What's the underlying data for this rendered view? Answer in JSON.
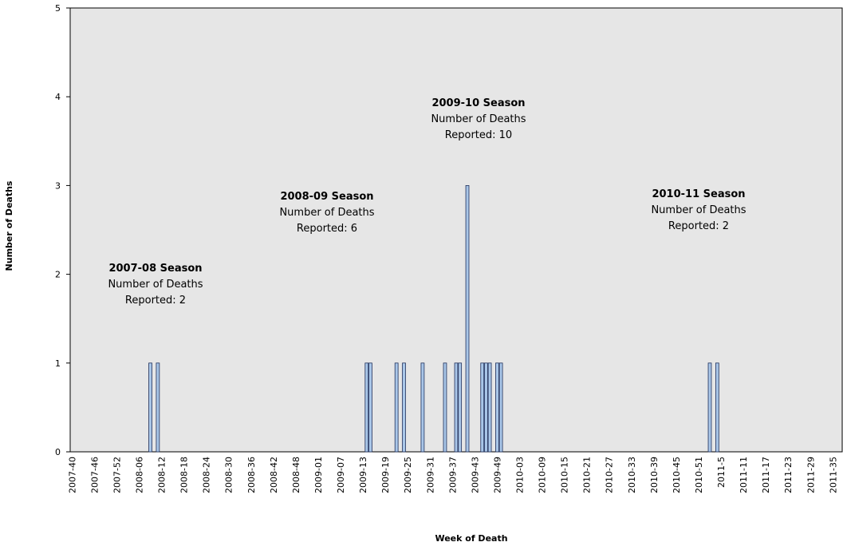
{
  "chart_data": {
    "type": "bar",
    "y_label": "Number of Deaths",
    "x_label": "Week of Death",
    "ylim": [
      0,
      5
    ],
    "yticks": [
      0,
      1,
      2,
      3,
      4,
      5
    ],
    "color": "#a9c6e8",
    "annotations": [
      {
        "title": "2007-08 Season",
        "lines": [
          "Number of Deaths",
          "Reported: 2"
        ]
      },
      {
        "title": "2008-09 Season",
        "lines": [
          "Number of Deaths",
          "Reported: 6"
        ]
      },
      {
        "title": "2009-10 Season",
        "lines": [
          "Number of Deaths",
          "Reported: 10"
        ]
      },
      {
        "title": "2010-11 Season",
        "lines": [
          "Number of Deaths",
          "Reported: 2"
        ]
      }
    ],
    "categories": [
      "2007-40",
      null,
      null,
      null,
      null,
      null,
      "2007-46",
      null,
      null,
      null,
      null,
      null,
      "2007-52",
      null,
      null,
      null,
      null,
      null,
      "2008-06",
      null,
      null,
      null,
      null,
      null,
      "2008-12",
      null,
      null,
      null,
      null,
      null,
      "2008-18",
      null,
      null,
      null,
      null,
      null,
      "2008-24",
      null,
      null,
      null,
      null,
      null,
      "2008-30",
      null,
      null,
      null,
      null,
      null,
      "2008-36",
      null,
      null,
      null,
      null,
      null,
      "2008-42",
      null,
      null,
      null,
      null,
      null,
      "2008-48",
      null,
      null,
      null,
      null,
      null,
      "2009-01",
      null,
      null,
      null,
      null,
      null,
      "2009-07",
      null,
      null,
      null,
      null,
      null,
      "2009-13",
      null,
      null,
      null,
      null,
      null,
      "2009-19",
      null,
      null,
      null,
      null,
      null,
      "2009-25",
      null,
      null,
      null,
      null,
      null,
      "2009-31",
      null,
      null,
      null,
      null,
      null,
      "2009-37",
      null,
      null,
      null,
      null,
      null,
      "2009-43",
      null,
      null,
      null,
      null,
      null,
      "2009-49",
      null,
      null,
      null,
      null,
      null,
      "2010-03",
      null,
      null,
      null,
      null,
      null,
      "2010-09",
      null,
      null,
      null,
      null,
      null,
      "2010-15",
      null,
      null,
      null,
      null,
      null,
      "2010-21",
      null,
      null,
      null,
      null,
      null,
      "2010-27",
      null,
      null,
      null,
      null,
      null,
      "2010-33",
      null,
      null,
      null,
      null,
      null,
      "2010-39",
      null,
      null,
      null,
      null,
      null,
      "2010-45",
      null,
      null,
      null,
      null,
      null,
      "2010-51",
      null,
      null,
      null,
      null,
      null,
      "2011-5",
      null,
      null,
      null,
      null,
      null,
      "2011-11",
      null,
      null,
      null,
      null,
      null,
      "2011-17",
      null,
      null,
      null,
      null,
      null,
      "2011-23",
      null,
      null,
      null,
      null,
      null,
      "2011-29",
      null,
      null,
      null,
      null,
      null,
      "2011-35",
      null,
      null
    ],
    "values": [
      0,
      0,
      0,
      0,
      0,
      0,
      0,
      0,
      0,
      0,
      0,
      0,
      0,
      0,
      0,
      0,
      0,
      0,
      0,
      0,
      0,
      1,
      0,
      1,
      0,
      0,
      0,
      0,
      0,
      0,
      0,
      0,
      0,
      0,
      0,
      0,
      0,
      0,
      0,
      0,
      0,
      0,
      0,
      0,
      0,
      0,
      0,
      0,
      0,
      0,
      0,
      0,
      0,
      0,
      0,
      0,
      0,
      0,
      0,
      0,
      0,
      0,
      0,
      0,
      0,
      0,
      0,
      0,
      0,
      0,
      0,
      0,
      0,
      0,
      0,
      0,
      0,
      0,
      0,
      1,
      1,
      0,
      0,
      0,
      0,
      0,
      0,
      1,
      0,
      1,
      0,
      0,
      0,
      0,
      1,
      0,
      0,
      0,
      0,
      0,
      1,
      0,
      0,
      1,
      1,
      0,
      3,
      0,
      0,
      0,
      1,
      1,
      1,
      0,
      1,
      1,
      0,
      0,
      0,
      0,
      0,
      0,
      0,
      0,
      0,
      0,
      0,
      0,
      0,
      0,
      0,
      0,
      0,
      0,
      0,
      0,
      0,
      0,
      0,
      0,
      0,
      0,
      0,
      0,
      0,
      0,
      0,
      0,
      0,
      0,
      0,
      0,
      0,
      0,
      0,
      0,
      0,
      0,
      0,
      0,
      0,
      0,
      0,
      0,
      0,
      0,
      0,
      0,
      0,
      0,
      0,
      1,
      0,
      1,
      0,
      0,
      0,
      0,
      0,
      0,
      0,
      0,
      0,
      0,
      0,
      0,
      0,
      0,
      0,
      0,
      0,
      0,
      0,
      0,
      0,
      0,
      0,
      0,
      0,
      0,
      0,
      0,
      0,
      0,
      0,
      0,
      0
    ]
  }
}
